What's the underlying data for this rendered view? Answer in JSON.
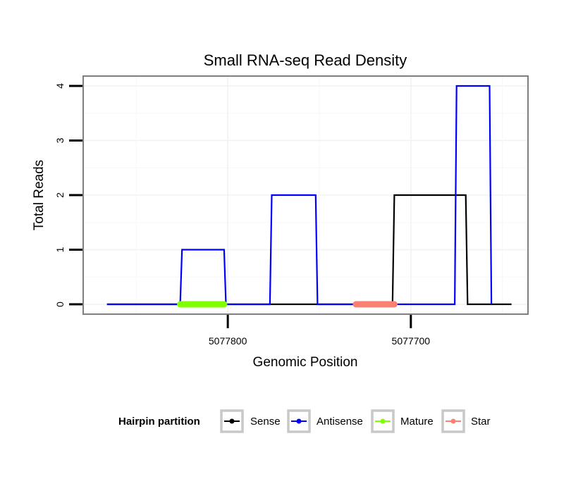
{
  "chart_data": {
    "type": "line",
    "title": "Small RNA-seq Read Density",
    "xlabel": "Genomic Position",
    "ylabel": "Total Reads",
    "x_reversed": true,
    "xlim": [
      5077879,
      5077636
    ],
    "ylim": [
      -0.18,
      4.18
    ],
    "x_ticks": [
      5077800,
      5077700
    ],
    "x_tick_labels": [
      "5077800",
      "5077700"
    ],
    "y_ticks": [
      0,
      1,
      2,
      3,
      4
    ],
    "y_tick_labels": [
      "0",
      "1",
      "2",
      "3",
      "4"
    ],
    "grid": true,
    "series": [
      {
        "name": "Sense",
        "color": "#000000",
        "x": [
          5077866,
          5077710,
          5077709,
          5077685,
          5077684,
          5077670,
          5077669,
          5077645
        ],
        "y": [
          0,
          0,
          2,
          2,
          2,
          2,
          0,
          0
        ]
      },
      {
        "name": "Antisense",
        "color": "#0000ff",
        "x": [
          5077866,
          5077826,
          5077825,
          5077802,
          5077801,
          5077777,
          5077776,
          5077752,
          5077751,
          5077699,
          5077698,
          5077676,
          5077675,
          5077657,
          5077656
        ],
        "y": [
          0,
          0,
          1,
          1,
          0,
          0,
          2,
          2,
          0,
          0,
          0,
          0,
          4,
          4,
          0
        ]
      },
      {
        "name": "Mature",
        "color": "#7fff00",
        "x": [
          5077826,
          5077802
        ],
        "y": [
          0,
          0
        ]
      },
      {
        "name": "Star",
        "color": "#fa8072",
        "x": [
          5077730,
          5077709
        ],
        "y": [
          0,
          0
        ]
      }
    ],
    "legend": {
      "title": "Hairpin partition",
      "position": "bottom",
      "entries": [
        "Sense",
        "Antisense",
        "Mature",
        "Star"
      ]
    }
  }
}
